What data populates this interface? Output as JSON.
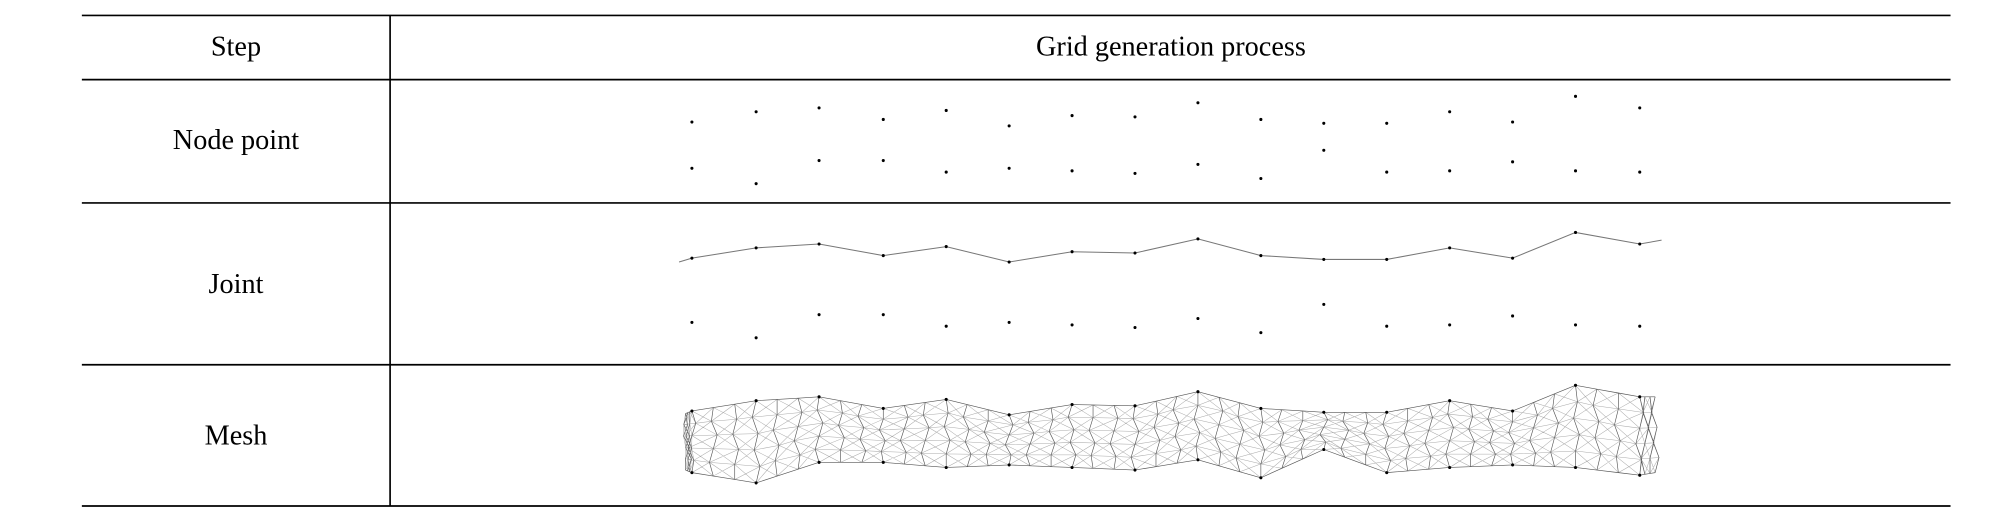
{
  "table": {
    "header": [
      "Step",
      "Grid generation process"
    ],
    "rows": [
      [
        "Node point"
      ],
      [
        "Joint"
      ],
      [
        "Mesh"
      ]
    ]
  }
}
